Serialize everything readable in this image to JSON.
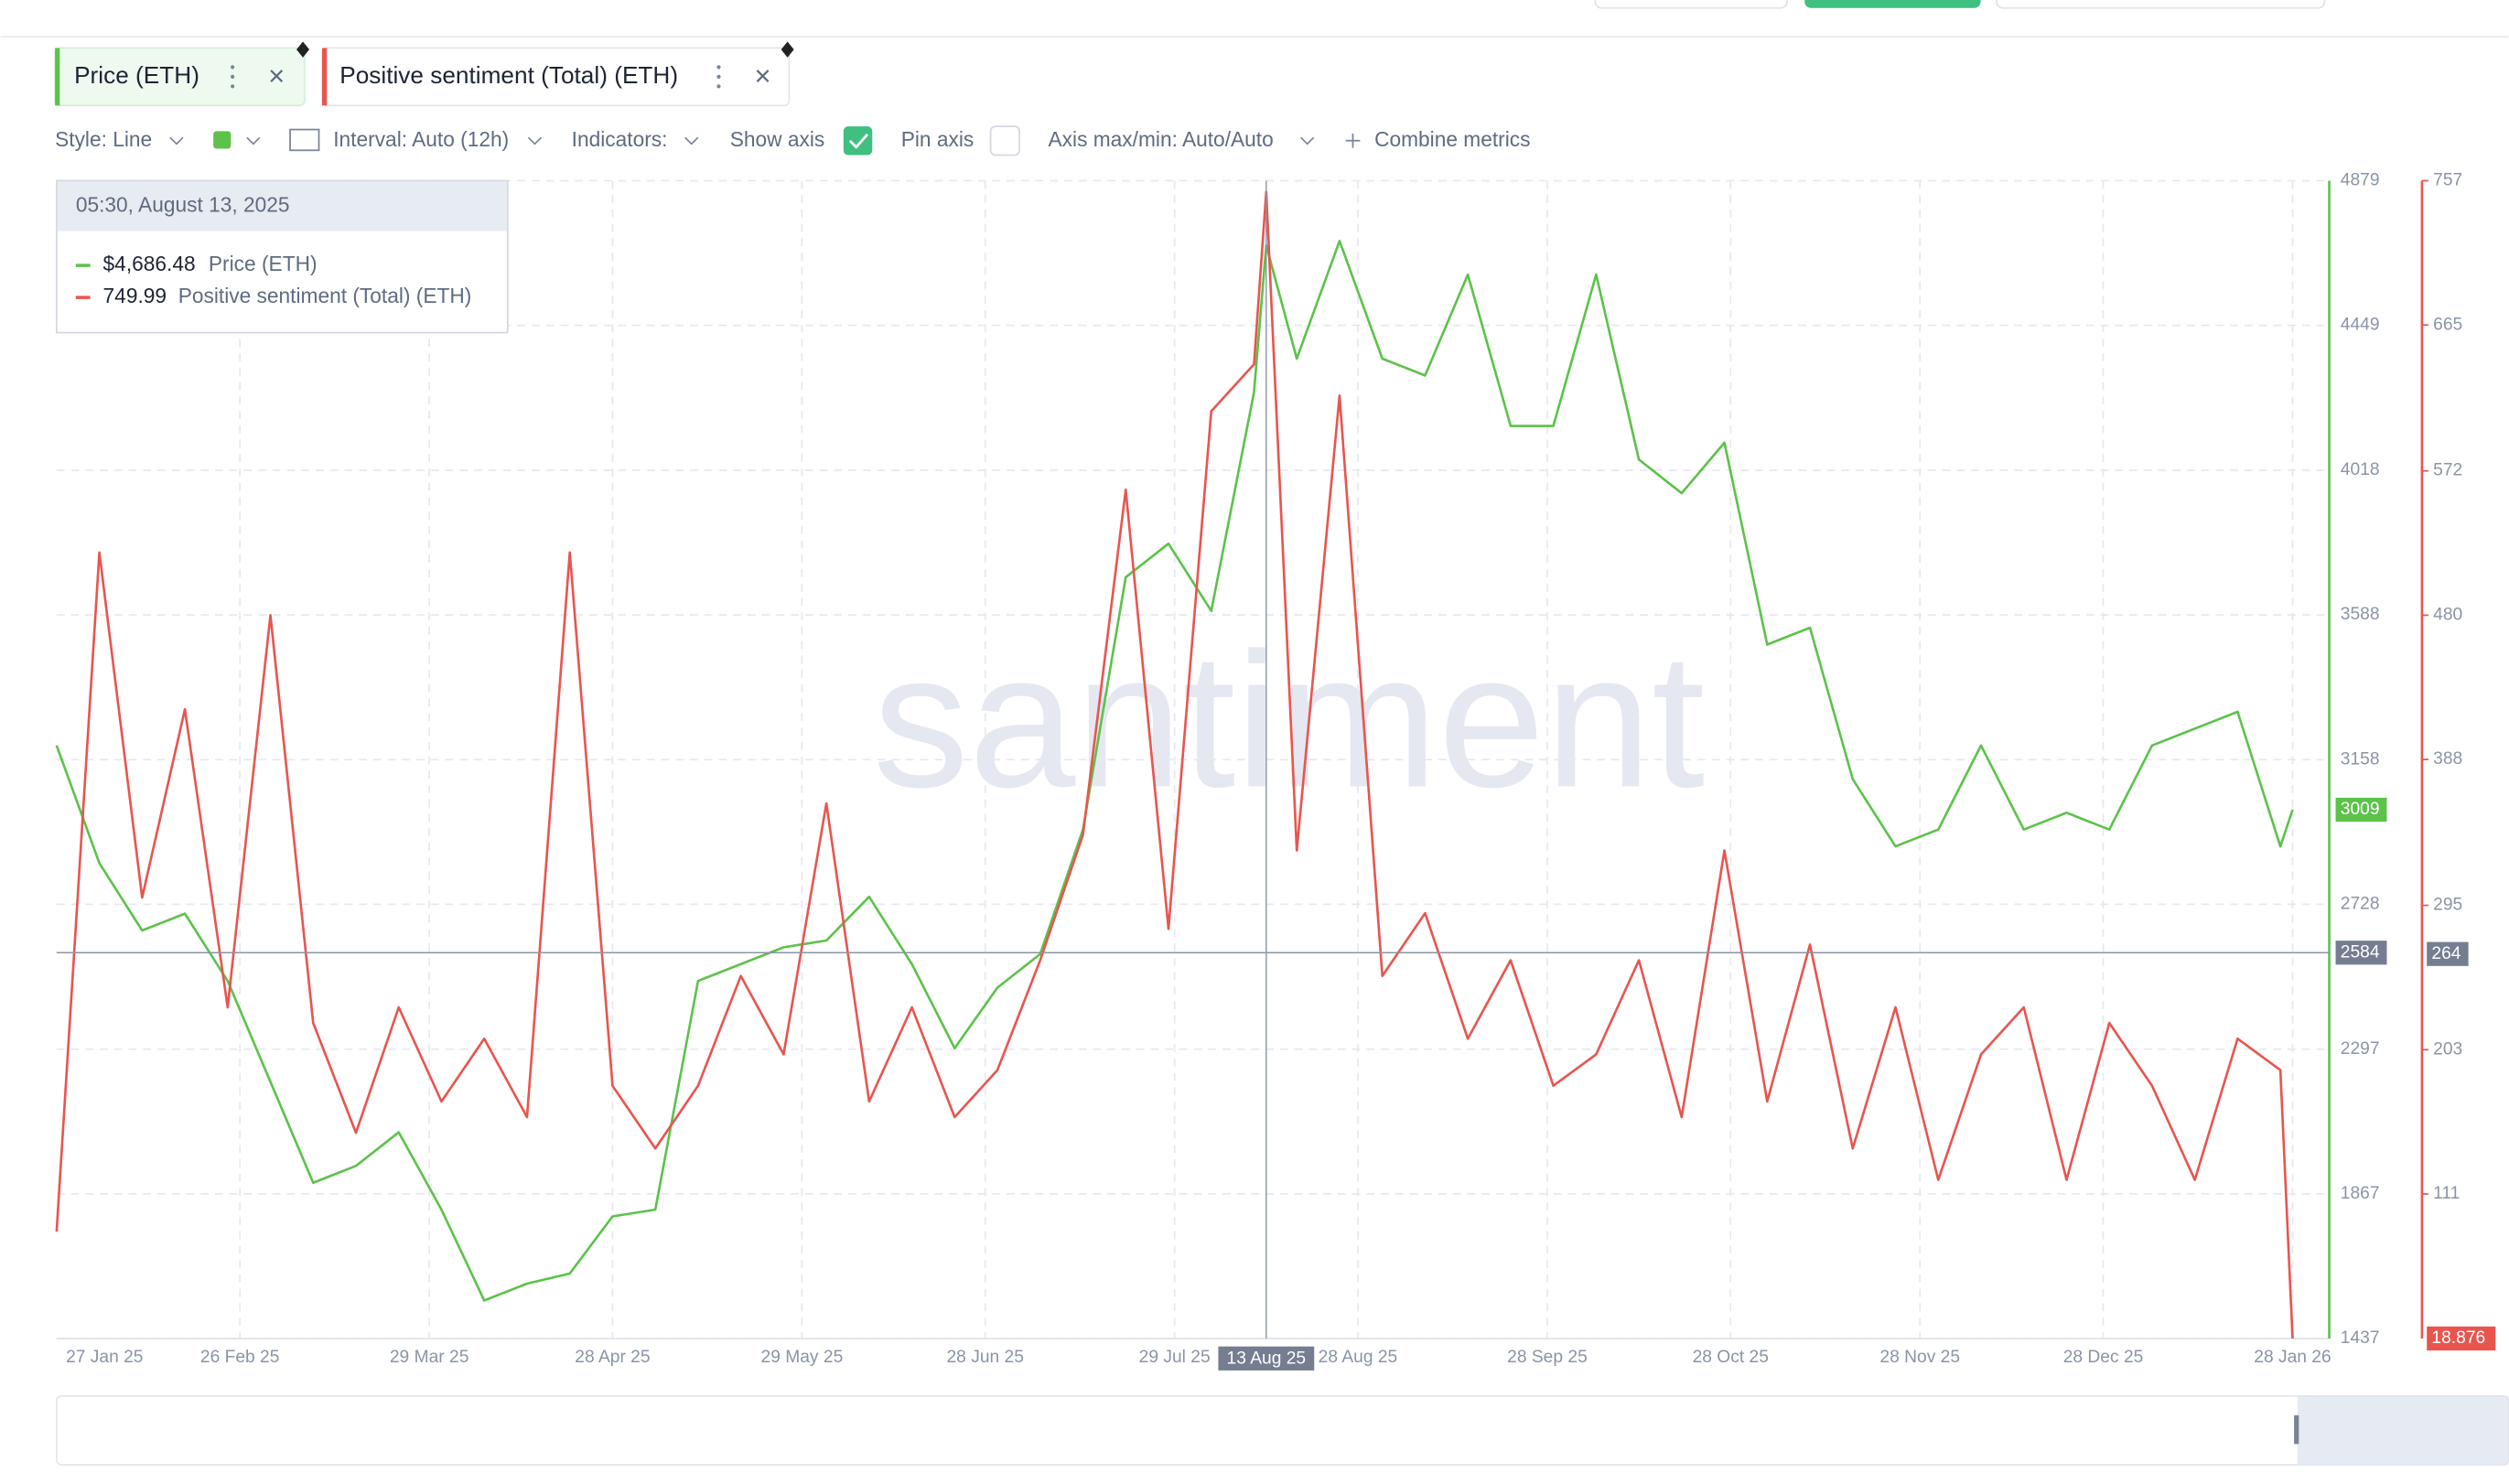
{
  "toolbar": {
    "style": "Style: Line",
    "interval": "Interval: Auto (12h)",
    "indicators": "Indicators:",
    "show_axis": "Show axis",
    "pin_axis": "Pin axis",
    "axis_minmax": "Axis max/min: Auto/Auto",
    "combine": "Combine metrics"
  },
  "tooltip": {
    "date": "05:30, August 13, 2025",
    "price": "$4,686.48",
    "sentiment": "749.99"
  },
  "chart_data": {
    "type": "line",
    "watermark": "santiment",
    "grid": true,
    "x": [
      "2025-01-27",
      "2025-02-03",
      "2025-02-10",
      "2025-02-17",
      "2025-02-24",
      "2025-03-03",
      "2025-03-10",
      "2025-03-17",
      "2025-03-24",
      "2025-03-31",
      "2025-04-07",
      "2025-04-14",
      "2025-04-21",
      "2025-04-28",
      "2025-05-05",
      "2025-05-12",
      "2025-05-19",
      "2025-05-26",
      "2025-06-02",
      "2025-06-09",
      "2025-06-16",
      "2025-06-23",
      "2025-06-30",
      "2025-07-07",
      "2025-07-14",
      "2025-07-21",
      "2025-07-28",
      "2025-08-04",
      "2025-08-11",
      "2025-08-13",
      "2025-08-18",
      "2025-08-25",
      "2025-09-01",
      "2025-09-08",
      "2025-09-15",
      "2025-09-22",
      "2025-09-29",
      "2025-10-06",
      "2025-10-13",
      "2025-10-20",
      "2025-10-27",
      "2025-11-03",
      "2025-11-10",
      "2025-11-17",
      "2025-11-24",
      "2025-12-01",
      "2025-12-08",
      "2025-12-15",
      "2025-12-22",
      "2025-12-29",
      "2026-01-05",
      "2026-01-12",
      "2026-01-19",
      "2026-01-26",
      "2026-01-28"
    ],
    "series": [
      {
        "name": "Price (ETH)",
        "color": "#5cc24a",
        "values": [
          3200,
          2850,
          2650,
          2700,
          2500,
          2200,
          1900,
          1950,
          2050,
          1820,
          1550,
          1600,
          1630,
          1800,
          1820,
          2500,
          2550,
          2600,
          2620,
          2750,
          2550,
          2300,
          2480,
          2580,
          2950,
          3700,
          3800,
          3600,
          4250,
          4686.48,
          4350,
          4700,
          4350,
          4300,
          4600,
          4150,
          4150,
          4600,
          4050,
          3950,
          4100,
          3500,
          3550,
          3100,
          2900,
          2950,
          3200,
          2950,
          3000,
          2950,
          3200,
          3250,
          3300,
          2900,
          3009
        ]
      },
      {
        "name": "Positive sentiment (Total) (ETH)",
        "color": "#e8554f",
        "axis": "y2",
        "values": [
          87,
          520,
          300,
          420,
          230,
          480,
          220,
          150,
          230,
          170,
          210,
          160,
          520,
          180,
          140,
          180,
          250,
          200,
          360,
          170,
          230,
          160,
          190,
          260,
          340,
          560,
          280,
          610,
          640,
          749.99,
          330,
          620,
          250,
          290,
          210,
          260,
          180,
          200,
          260,
          160,
          330,
          170,
          270,
          140,
          230,
          120,
          200,
          230,
          120,
          220,
          180,
          120,
          210,
          190,
          18.876
        ]
      }
    ],
    "xlim": [
      "2025-01-27",
      "2026-02-03"
    ],
    "xticks": [
      {
        "value": "2025-01-27",
        "label": "27 Jan 25"
      },
      {
        "value": "2025-02-26",
        "label": "26 Feb 25"
      },
      {
        "value": "2025-03-29",
        "label": "29 Mar 25"
      },
      {
        "value": "2025-04-28",
        "label": "28 Apr 25"
      },
      {
        "value": "2025-05-29",
        "label": "29 May 25"
      },
      {
        "value": "2025-06-28",
        "label": "28 Jun 25"
      },
      {
        "value": "2025-07-29",
        "label": "29 Jul 25"
      },
      {
        "value": "2025-08-28",
        "label": "28 Aug 25"
      },
      {
        "value": "2025-09-28",
        "label": "28 Sep 25"
      },
      {
        "value": "2025-10-28",
        "label": "28 Oct 25"
      },
      {
        "value": "2025-11-28",
        "label": "28 Nov 25"
      },
      {
        "value": "2025-12-28",
        "label": "28 Dec 25"
      },
      {
        "value": "2026-01-28",
        "label": "28 Jan 26"
      }
    ],
    "ylim": [
      1437,
      4879
    ],
    "yticks": [
      1437,
      1867,
      2297,
      2728,
      3158,
      3588,
      4018,
      4449,
      4879
    ],
    "y2lim": [
      18.876,
      757
    ],
    "y2ticks": [
      111,
      203,
      295,
      388,
      480,
      572,
      665,
      757
    ],
    "crosshair": {
      "date": "2025-08-13",
      "date_label": "13 Aug 25",
      "price": 2584,
      "sentiment": 264
    }
  }
}
